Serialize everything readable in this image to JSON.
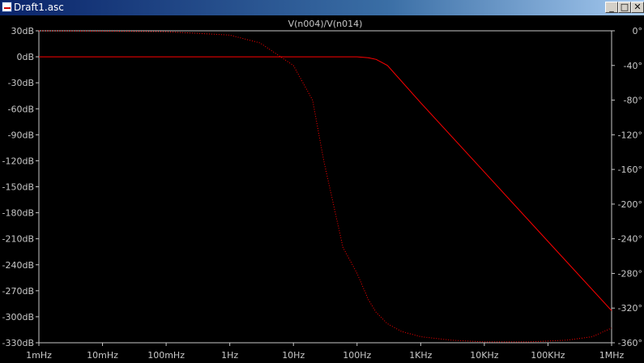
{
  "window": {
    "title": "Draft1.asc",
    "minimize_glyph": "_",
    "maximize_glyph": "□",
    "close_glyph": "✕",
    "icon": "schematic-icon"
  },
  "colors": {
    "background": "#000000",
    "trace": "#ff0000",
    "axis": "#c8c8c8",
    "titlebar": "#0a246a"
  },
  "chart_data": {
    "type": "line",
    "title": "V(n004)/V(n014)",
    "x_scale": "log",
    "x_range_hz": [
      0.001,
      1000000
    ],
    "x_ticks": [
      "1mHz",
      "10mHz",
      "100mHz",
      "1Hz",
      "10Hz",
      "100Hz",
      "1KHz",
      "10KHz",
      "100KHz",
      "1MHz"
    ],
    "y_left_range_db": [
      -330,
      30
    ],
    "y_left_ticks": [
      "30dB",
      "0dB",
      "-30dB",
      "-60dB",
      "-90dB",
      "-120dB",
      "-150dB",
      "-180dB",
      "-210dB",
      "-240dB",
      "-270dB",
      "-300dB",
      "-330dB"
    ],
    "y_right_range_deg": [
      -360,
      0
    ],
    "y_right_ticks": [
      "0°",
      "-40°",
      "-80°",
      "-120°",
      "-160°",
      "-200°",
      "-240°",
      "-280°",
      "-320°",
      "-360°"
    ],
    "grid": false,
    "series": [
      {
        "name": "V(n004)/V(n014)",
        "quantity": "magnitude",
        "style": "solid",
        "axis": "left",
        "x": [
          0.001,
          1,
          10,
          100,
          150,
          200,
          300,
          1000,
          10000,
          100000,
          1000000
        ],
        "y": [
          0,
          0,
          0,
          0,
          -1,
          -3,
          -10,
          -53,
          -133,
          -213,
          -293
        ]
      },
      {
        "name": "V(n004)/V(n014)",
        "quantity": "phase",
        "style": "dotted",
        "axis": "right",
        "x": [
          0.001,
          0.1,
          1,
          3,
          10,
          20,
          30,
          60,
          100,
          150,
          200,
          300,
          500,
          1000,
          3000,
          10000,
          50000,
          200000,
          500000,
          1000000
        ],
        "y": [
          0,
          -1,
          -5,
          -14,
          -40,
          -80,
          -150,
          -250,
          -280,
          -310,
          -325,
          -338,
          -347,
          -353,
          -357,
          -359,
          -359,
          -357,
          -353,
          -343
        ]
      }
    ]
  }
}
